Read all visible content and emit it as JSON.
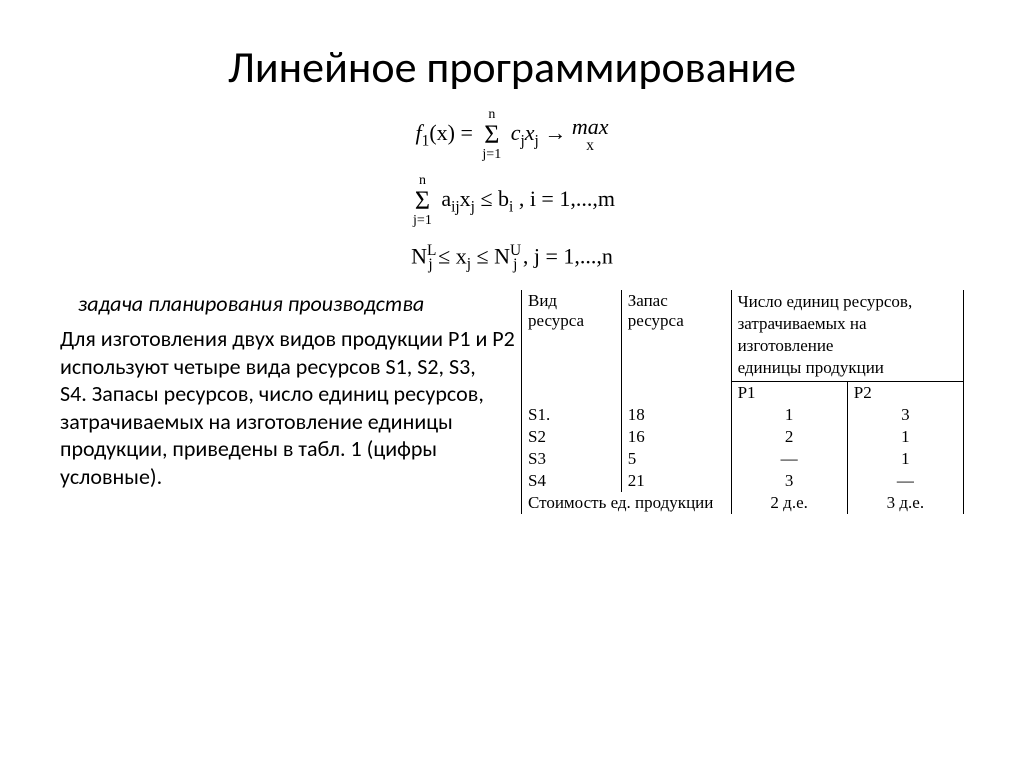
{
  "title": "Линейное программирование",
  "formulas": {
    "f1_left": "f",
    "f1_sub": "1",
    "f1_x": "(x) =",
    "sum_top": "n",
    "sum_bot": "j=1",
    "term1": "c",
    "term1_sub": "j",
    "term2": "x",
    "term2_sub": "j",
    "arrow": " → ",
    "max": "max",
    "max_sub": "x",
    "constr_a": "a",
    "constr_ij": "ij",
    "constr_x": "x",
    "constr_j": "j",
    "leq": " ≤ ",
    "b": "b",
    "b_i": "i",
    "irange": ",  i = 1,...,m",
    "N": "N",
    "N_L": "L",
    "N_j": "j",
    "x_mid": "x",
    "x_mid_j": "j",
    "N_U": "U",
    "jrange": ",  j = 1,...,n"
  },
  "subtitle": "задача планирования производства",
  "body": "Для изготовления двух видов продукции Р1 и Р2 используют четыре вида ресурсов S1, S2, S3,\nS4. Запасы ресурсов, число единиц ресурсов, затрачиваемых на изготовление единицы\nпродукции, приведены в табл. 1 (цифры условные).",
  "table": {
    "header": {
      "col1": "Вид ресурса",
      "col2": "Запас ресурса",
      "col3_line1": "Число единиц ресурсов,",
      "col3_line2": "затрачиваемых на изготовление",
      "col3_line3": "единицы продукции",
      "p1": "Р1",
      "p2": "Р2"
    },
    "rows": [
      {
        "name": "S1.",
        "stock": "18",
        "p1": "1",
        "p2": "3"
      },
      {
        "name": "S2",
        "stock": "16",
        "p1": "2",
        "p2": "1"
      },
      {
        "name": "S3",
        "stock": "5",
        "p1": "—",
        "p2": "1"
      },
      {
        "name": "S4",
        "stock": "21",
        "p1": "3",
        "p2": "—"
      }
    ],
    "footer": {
      "label": "Стоимость ед. продукции",
      "p1": "2 д.е.",
      "p2": "3 д.е."
    }
  }
}
